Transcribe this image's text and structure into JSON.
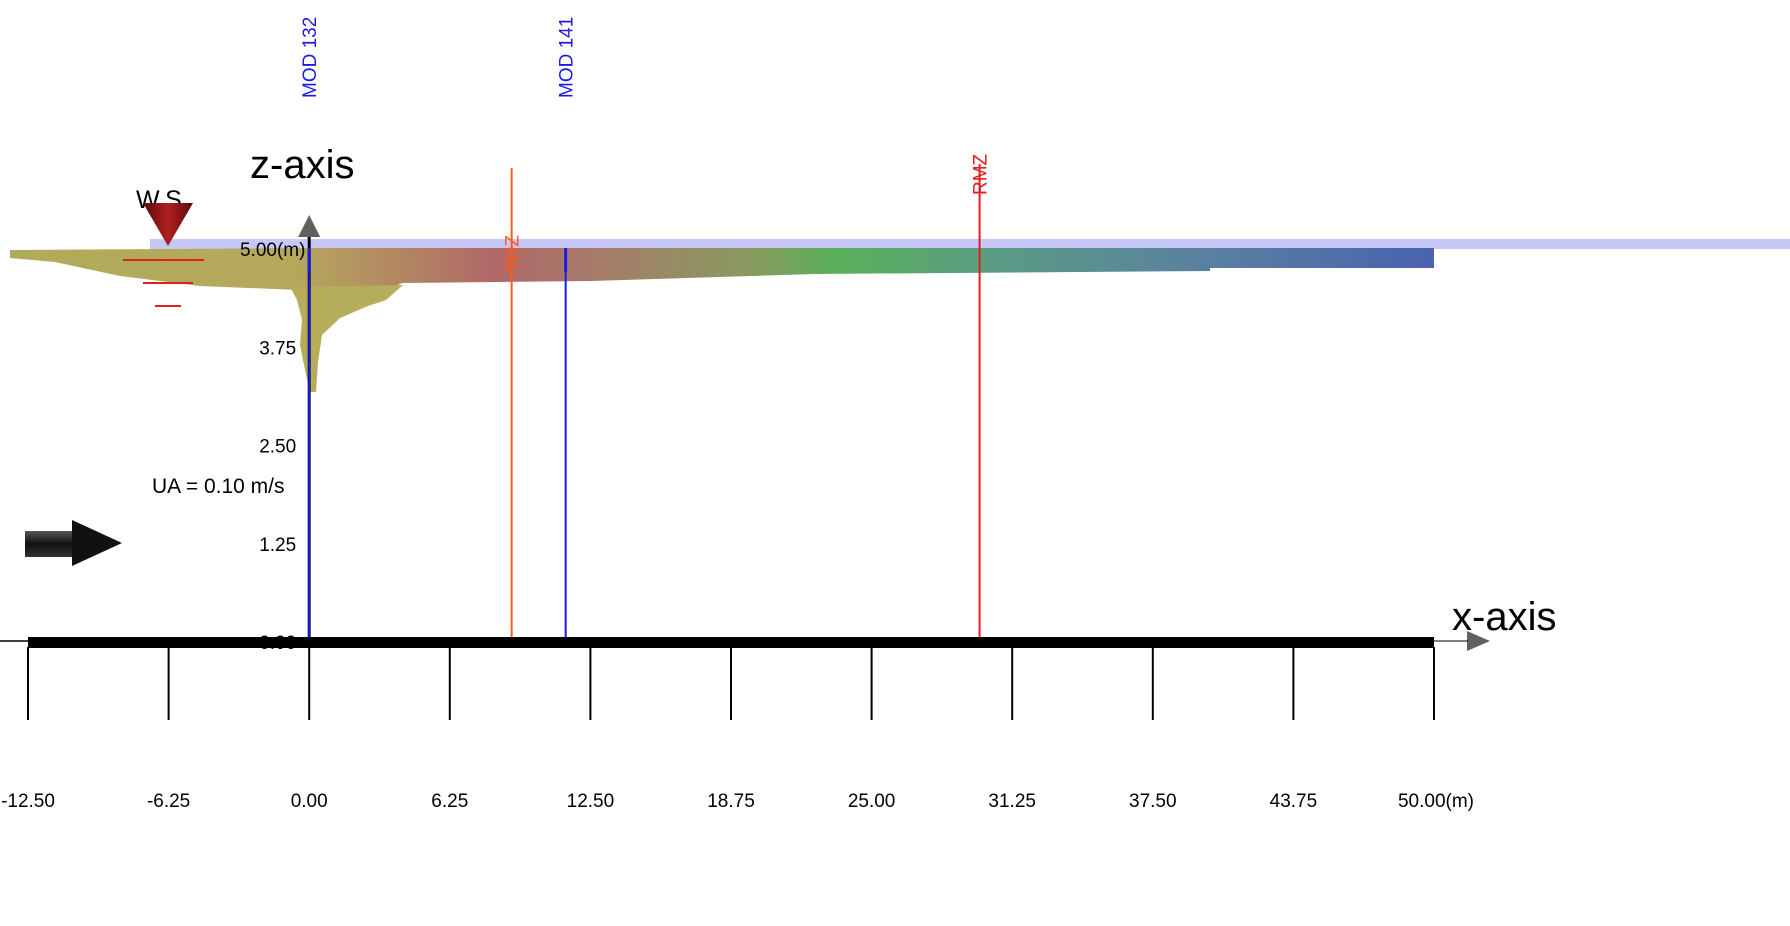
{
  "chart_data": {
    "type": "area",
    "title": "",
    "xlabel": "x-axis",
    "ylabel": "z-axis",
    "x_unit": "(m)",
    "z_unit": "(m)",
    "xlim": [
      -12.5,
      50.0
    ],
    "zlim": [
      0.0,
      5.0
    ],
    "x_ticks": [
      "-12.50",
      "-6.25",
      "0.00",
      "6.25",
      "12.50",
      "18.75",
      "25.00",
      "31.25",
      "37.50",
      "43.75",
      "50.00"
    ],
    "x_tick_values": [
      -12.5,
      -6.25,
      0.0,
      6.25,
      12.5,
      18.75,
      25.0,
      31.25,
      37.5,
      43.75,
      50.0
    ],
    "x_unit_tick": "50.00(m)",
    "z_ticks": [
      {
        "value": 0.0,
        "label": "0.00"
      },
      {
        "value": 1.25,
        "label": "1.25"
      },
      {
        "value": 2.5,
        "label": "2.50"
      },
      {
        "value": 3.75,
        "label": "3.75"
      },
      {
        "value": 5.0,
        "label": "5.00(m)"
      }
    ],
    "water_surface": {
      "label": "W.S.",
      "z": 5.0
    },
    "ambient_velocity": {
      "label": "UA = 0.10 m/s",
      "value": 0.1
    },
    "vertical_markers": [
      {
        "name": "MOD 132",
        "x": 0.0,
        "color": "#1a1ae6"
      },
      {
        "name": "MOD 141",
        "x": 11.4,
        "color": "#1a1ae6"
      },
      {
        "name": "RMZ",
        "x": 29.8,
        "color": "#e02020"
      },
      {
        "name": "TDZ",
        "x": 9.0,
        "color": "#ff5a1a"
      }
    ],
    "plume_colors": [
      "#b5ad5a",
      "#b06a6a",
      "#5aae5a",
      "#4a6ab0"
    ],
    "water_color": "#c8c8f8"
  }
}
